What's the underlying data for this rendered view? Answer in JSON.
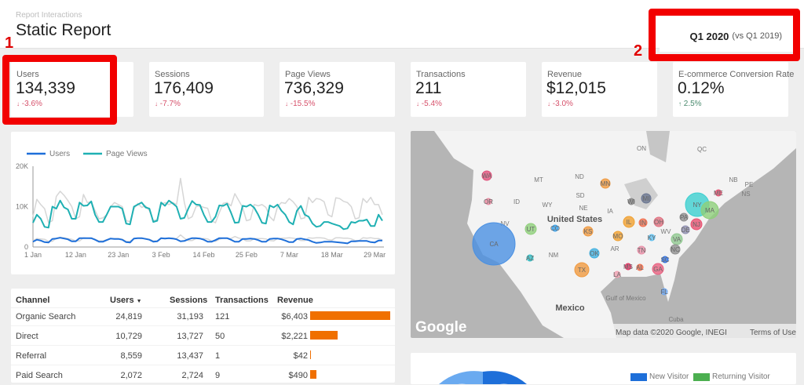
{
  "header": {
    "subtitle": "Report Interactions",
    "title": "Static Report"
  },
  "period": {
    "current": "Q1 2020",
    "comparison": "(vs Q1 2019)"
  },
  "annotations": {
    "one": "1",
    "two": "2",
    "highlight_color": "#f20000"
  },
  "kpis": [
    {
      "label": "Users",
      "value": "134,339",
      "change": "-3.6%",
      "direction": "down"
    },
    {
      "label": "Sessions",
      "value": "176,409",
      "change": "-7.7%",
      "direction": "down"
    },
    {
      "label": "Page Views",
      "value": "736,329",
      "change": "-15.5%",
      "direction": "down"
    },
    {
      "label": "Transactions",
      "value": "211",
      "change": "-5.4%",
      "direction": "down"
    },
    {
      "label": "Revenue",
      "value": "$12,015",
      "change": "-3.0%",
      "direction": "down"
    },
    {
      "label": "E-commerce Conversion Rate",
      "value": "0.12%",
      "change": "2.5%",
      "direction": "up"
    }
  ],
  "chart_data": {
    "type": "line",
    "legend": [
      "Users",
      "Page Views"
    ],
    "colors": {
      "Users": "#1e6fd9",
      "Page Views": "#1fb0b3",
      "comparison": "#d6d6d6"
    },
    "x_ticks": [
      "1 Jan",
      "12 Jan",
      "23 Jan",
      "3 Feb",
      "14 Feb",
      "25 Feb",
      "7 Mar",
      "18 Mar",
      "29 Mar"
    ],
    "y_ticks": [
      "0",
      "10K",
      "20K"
    ],
    "ylim": [
      0,
      20000
    ],
    "x_start": "2020-01-01",
    "series": [
      {
        "name": "Page Views",
        "values": [
          6000,
          8000,
          7000,
          5000,
          4800,
          10000,
          9500,
          11500,
          9800,
          9300,
          7000,
          7000,
          11000,
          10200,
          10300,
          11300,
          8000,
          6200,
          6200,
          8000,
          10000,
          10000,
          10000,
          9500,
          5800,
          5600,
          10000,
          10500,
          11000,
          9800,
          9500,
          6200,
          6500,
          11000,
          10200,
          11500,
          10800,
          10000,
          7000,
          7200,
          9500,
          11400,
          10500,
          10400,
          8000,
          6200,
          6200,
          7500,
          10300,
          10200,
          10700,
          8500,
          6000,
          6100,
          10200,
          10000,
          10500,
          9700,
          8000,
          6000,
          5800,
          10300,
          9800,
          10500,
          9000,
          8000,
          6200,
          5600,
          9000,
          10200,
          8000,
          7500,
          5800,
          5000,
          5200,
          6200,
          6200,
          5800,
          5500,
          5200,
          4400,
          4600,
          6200,
          6000,
          6500,
          6500,
          6800,
          5200,
          5200,
          8000,
          6500
        ]
      },
      {
        "name": "Users",
        "values": [
          1300,
          1800,
          1600,
          1200,
          1100,
          2000,
          2100,
          2300,
          2100,
          1900,
          1400,
          1400,
          2200,
          2200,
          2200,
          2200,
          1800,
          1300,
          1300,
          1700,
          2100,
          2000,
          2000,
          1800,
          1200,
          1100,
          2100,
          2200,
          2200,
          2000,
          1800,
          1300,
          1400,
          2200,
          2100,
          2200,
          2100,
          1900,
          1400,
          1500,
          1900,
          2200,
          2200,
          2100,
          1800,
          1300,
          1300,
          1700,
          2200,
          2200,
          2200,
          1800,
          1300,
          1300,
          2000,
          2000,
          2100,
          2000,
          1700,
          1300,
          1300,
          2000,
          2100,
          2100,
          1900,
          1600,
          1200,
          1200,
          2000,
          2100,
          1900,
          1700,
          1300,
          1000,
          1100,
          1300,
          1300,
          1300,
          1200,
          1100,
          1000,
          900,
          1400,
          1400,
          1500,
          1500,
          1500,
          1200,
          1100,
          1600,
          1600
        ]
      },
      {
        "name": "Page Views (previous period)",
        "values": [
          7500,
          11800,
          10500,
          9500,
          6000,
          6500,
          12500,
          13800,
          12800,
          11500,
          10000,
          7000,
          7500,
          13000,
          11000,
          11200,
          9000,
          7000,
          7200,
          8000,
          10000,
          11000,
          10500,
          10000,
          6500,
          6300,
          9500,
          10800,
          9800,
          10200,
          9000,
          6500,
          6800,
          10500,
          11000,
          10500,
          11000,
          10500,
          17000,
          11000,
          7000,
          7500,
          10000,
          10200,
          9800,
          9600,
          6500,
          6000,
          8500,
          10800,
          11000,
          10200,
          13200,
          11500,
          9800,
          6500,
          6800,
          10500,
          10200,
          10500,
          9800,
          7500,
          6500,
          10000,
          11000,
          10800,
          12000,
          11200,
          10000,
          7000,
          7200,
          12300,
          11000,
          12000,
          11800,
          11200,
          8000,
          7500,
          12200,
          12000,
          11300,
          11000,
          10000,
          7000,
          7200,
          12000,
          11000,
          12300,
          10500,
          10500,
          8000
        ]
      },
      {
        "name": "Users (previous period)",
        "values": [
          1500,
          2100,
          2000,
          1900,
          1400,
          1400,
          2200,
          2400,
          2300,
          2100,
          1900,
          1500,
          1500,
          2300,
          2200,
          2100,
          1900,
          1500,
          1500,
          1800,
          2100,
          2100,
          2100,
          1900,
          1400,
          1400,
          2100,
          2200,
          2100,
          2100,
          1900,
          1500,
          1500,
          2100,
          2200,
          2200,
          2200,
          2100,
          3000,
          2200,
          1600,
          1600,
          2100,
          2100,
          2100,
          2000,
          1500,
          1400,
          1900,
          2200,
          2200,
          2100,
          2600,
          2200,
          2000,
          1500,
          1500,
          2100,
          2100,
          2100,
          2000,
          1600,
          1500,
          2100,
          2200,
          2200,
          2300,
          2200,
          2000,
          1600,
          1600,
          2300,
          2200,
          2300,
          2300,
          2200,
          1800,
          1700,
          2300,
          2300,
          2200,
          2200,
          2000,
          1600,
          1600,
          2300,
          2200,
          2300,
          2100,
          2100,
          1700
        ]
      }
    ]
  },
  "table": {
    "headers": [
      "Channel",
      "Users",
      "Sessions",
      "Transactions",
      "Revenue"
    ],
    "sort_icon": "caret-down-icon",
    "bar_color": "#f07000",
    "rows": [
      {
        "channel": "Organic Search",
        "users": "24,819",
        "sessions": "31,193",
        "transactions": "121",
        "revenue": "$6,403",
        "revenue_value": 6403
      },
      {
        "channel": "Direct",
        "users": "10,729",
        "sessions": "13,727",
        "transactions": "50",
        "revenue": "$2,221",
        "revenue_value": 2221
      },
      {
        "channel": "Referral",
        "users": "8,559",
        "sessions": "13,437",
        "transactions": "1",
        "revenue": "$42",
        "revenue_value": 42
      },
      {
        "channel": "Paid Search",
        "users": "2,072",
        "sessions": "2,724",
        "transactions": "9",
        "revenue": "$490",
        "revenue_value": 490
      }
    ]
  },
  "map": {
    "place_labels": [
      "ON",
      "QC",
      "NB",
      "PE",
      "NS",
      "MT",
      "ND",
      "SD",
      "ID",
      "WY",
      "NE",
      "IA",
      "NV",
      "United States",
      "NM",
      "AR",
      "WV",
      "Mexico",
      "Gulf of Mexico",
      "Cuba"
    ],
    "bubbles": [
      {
        "state": "CA",
        "color": "#4a90e2"
      },
      {
        "state": "NY",
        "color": "#3ccfd0"
      },
      {
        "state": "MA",
        "color": "#8fcf7a"
      },
      {
        "state": "WA",
        "color": "#e0507a"
      },
      {
        "state": "OR",
        "color": "#e88aa0"
      },
      {
        "state": "MN",
        "color": "#f09a40"
      },
      {
        "state": "WI",
        "color": "#8a8a8a"
      },
      {
        "state": "MI",
        "color": "#6a7590"
      },
      {
        "state": "UT",
        "color": "#8fcf7a"
      },
      {
        "state": "CO",
        "color": "#3aa0e8"
      },
      {
        "state": "KS",
        "color": "#f09a40"
      },
      {
        "state": "MO",
        "color": "#f0a030"
      },
      {
        "state": "IL",
        "color": "#f0a030"
      },
      {
        "state": "IN",
        "color": "#f07050"
      },
      {
        "state": "OH",
        "color": "#e07080"
      },
      {
        "state": "PA",
        "color": "#909090"
      },
      {
        "state": "NJ",
        "color": "#e85070"
      },
      {
        "state": "DE",
        "color": "#9090b0"
      },
      {
        "state": "VA",
        "color": "#90c890"
      },
      {
        "state": "KY",
        "color": "#60c0f0"
      },
      {
        "state": "NC",
        "color": "#909090"
      },
      {
        "state": "TN",
        "color": "#e890a8"
      },
      {
        "state": "OK",
        "color": "#40b0e0"
      },
      {
        "state": "AZ",
        "color": "#30c0c8"
      },
      {
        "state": "TX",
        "color": "#f09a40"
      },
      {
        "state": "MS",
        "color": "#e03060"
      },
      {
        "state": "AL",
        "color": "#f07050"
      },
      {
        "state": "GA",
        "color": "#e86080"
      },
      {
        "state": "SC",
        "color": "#3070e0"
      },
      {
        "state": "LA",
        "color": "#f0a0b0"
      },
      {
        "state": "FL",
        "color": "#70a8f0"
      },
      {
        "state": "ME",
        "color": "#e85070"
      }
    ],
    "logo": "Google",
    "attribution": "Map data ©2020 Google, INEGI",
    "terms": "Terms of Use"
  },
  "donut": {
    "legend": [
      "New Visitor",
      "Returning Visitor"
    ],
    "colors": {
      "New Visitor": "#1e6fd9",
      "Returning Visitor": "#4caf50"
    }
  }
}
